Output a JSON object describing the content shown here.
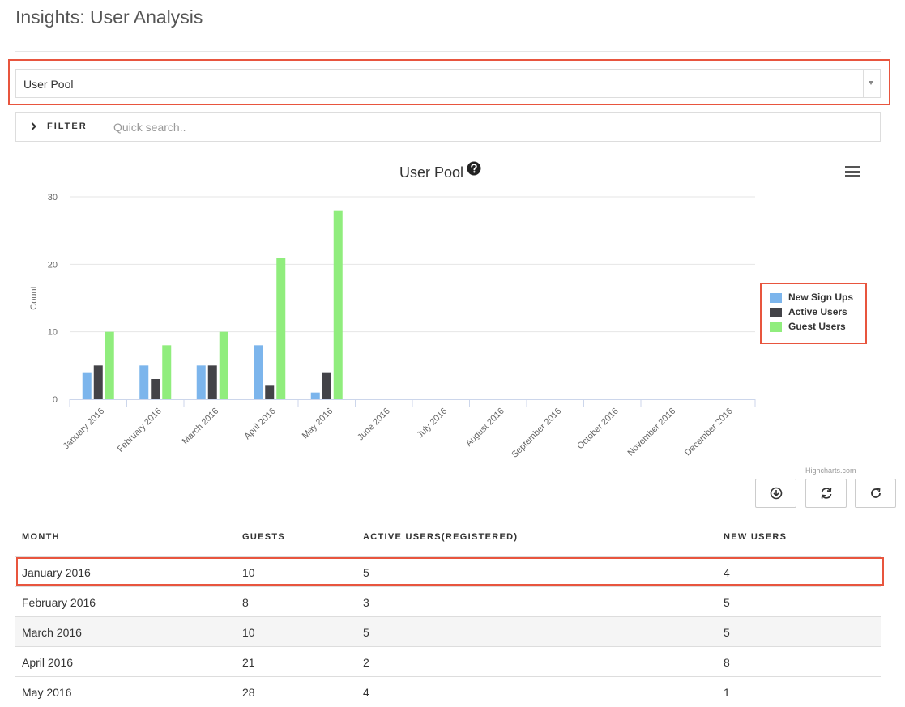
{
  "page_title": "Insights: User Analysis",
  "selector": {
    "value": "User Pool"
  },
  "filter": {
    "label": "FILTER",
    "placeholder": "Quick search.."
  },
  "chart": {
    "title": "User Pool",
    "credits": "Highcharts.com"
  },
  "icons": {
    "help": "question-circle-icon",
    "menu": "hamburger-menu-icon",
    "download": "download-icon",
    "sync": "sync-icon",
    "refresh": "refresh-icon",
    "filter_chevron": "chevron-right-icon"
  },
  "colors": {
    "highlight": "#e8553e",
    "new_sign_ups": "#7cb5ec",
    "active_users": "#434348",
    "guest_users": "#90ed7d"
  },
  "chart_data": {
    "type": "bar",
    "title": "User Pool",
    "xlabel": "",
    "ylabel": "Count",
    "ylim": [
      0,
      30
    ],
    "yticks": [
      0,
      10,
      20,
      30
    ],
    "grid": true,
    "legend_position": "right",
    "categories": [
      "January 2016",
      "February 2016",
      "March 2016",
      "April 2016",
      "May 2016",
      "June 2016",
      "July 2016",
      "August 2016",
      "September 2016",
      "October 2016",
      "November 2016",
      "December 2016"
    ],
    "series": [
      {
        "name": "New Sign Ups",
        "color": "#7cb5ec",
        "values": [
          4,
          5,
          5,
          8,
          1,
          0,
          0,
          0,
          0,
          0,
          0,
          0
        ]
      },
      {
        "name": "Active Users",
        "color": "#434348",
        "values": [
          5,
          3,
          5,
          2,
          4,
          0,
          0,
          0,
          0,
          0,
          0,
          0
        ]
      },
      {
        "name": "Guest Users",
        "color": "#90ed7d",
        "values": [
          10,
          8,
          10,
          21,
          28,
          0,
          0,
          0,
          0,
          0,
          0,
          0
        ]
      }
    ]
  },
  "table": {
    "headers": [
      "MONTH",
      "GUESTS",
      "ACTIVE USERS(REGISTERED)",
      "NEW USERS"
    ],
    "rows": [
      [
        "January 2016",
        "10",
        "5",
        "4"
      ],
      [
        "February 2016",
        "8",
        "3",
        "5"
      ],
      [
        "March 2016",
        "10",
        "5",
        "5"
      ],
      [
        "April 2016",
        "21",
        "2",
        "8"
      ],
      [
        "May 2016",
        "28",
        "4",
        "1"
      ]
    ]
  }
}
